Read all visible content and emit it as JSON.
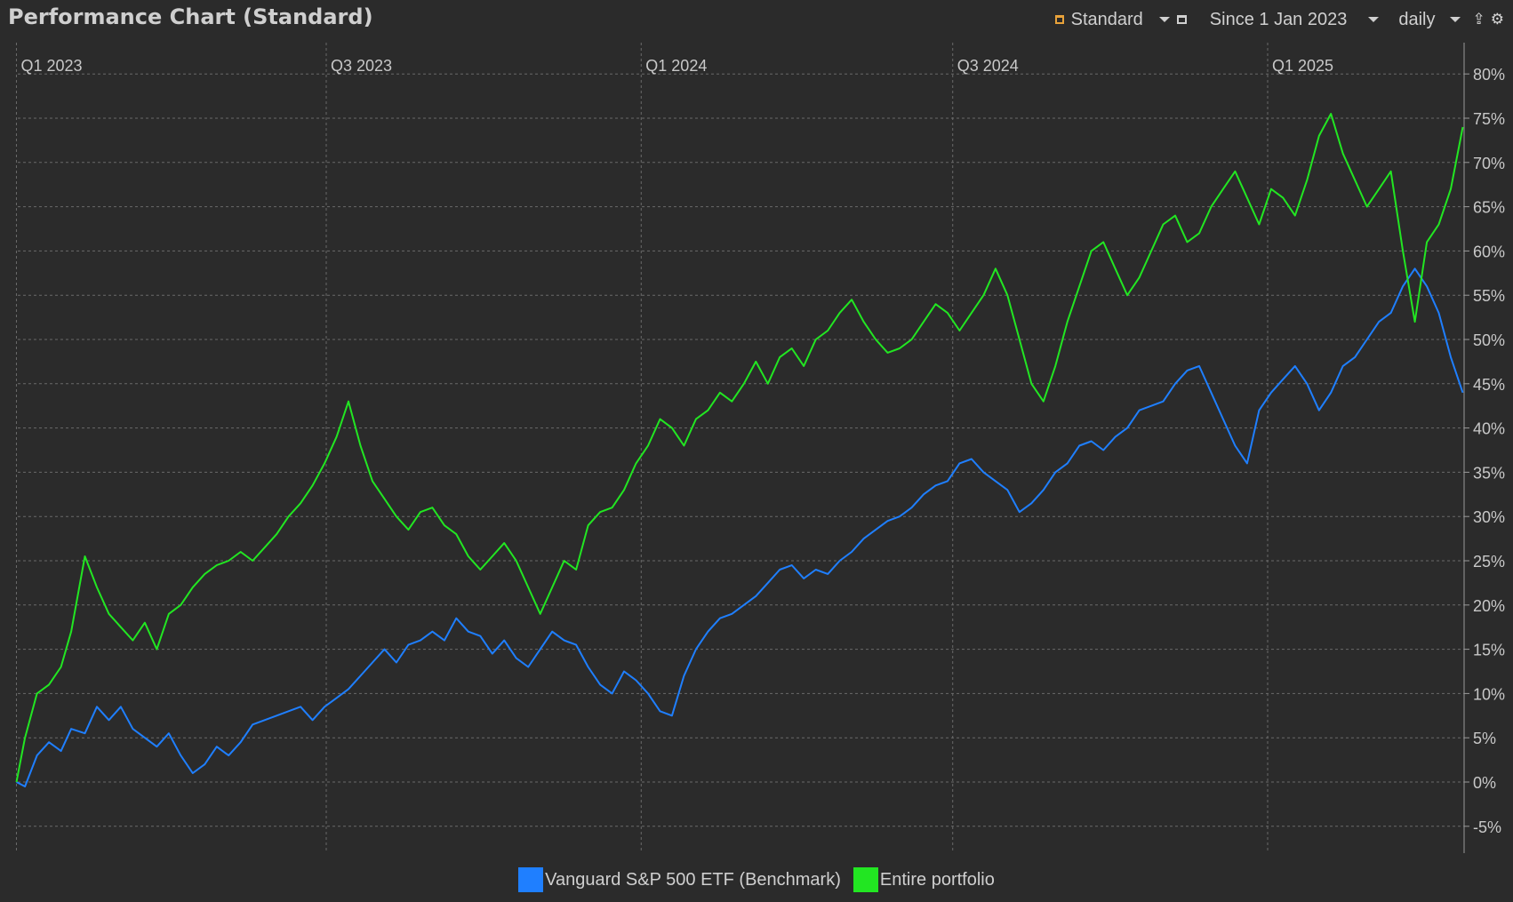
{
  "header": {
    "title": "Performance Chart (Standard)",
    "view_label": "Standard",
    "period_label": "Since 1 Jan 2023",
    "interval_label": "daily"
  },
  "icons": {
    "view": "chart-view-icon",
    "calendar": "calendar-icon",
    "export": "export-icon",
    "settings": "gear-icon"
  },
  "colors": {
    "background": "#2b2b2b",
    "benchmark": "#1f7fff",
    "portfolio": "#22e622",
    "grid": "#6a6a6a"
  },
  "chart_data": {
    "type": "line",
    "title": "Performance Chart (Standard)",
    "x_unit": "date",
    "x_range": [
      "2023-01-01",
      "2025-04-30"
    ],
    "y_unit": "%",
    "ylim": [
      -5,
      80
    ],
    "y_ticks": [
      80,
      75,
      70,
      65,
      60,
      55,
      50,
      45,
      40,
      35,
      30,
      25,
      20,
      15,
      10,
      5,
      0,
      -5
    ],
    "y_tick_labels": [
      "80%",
      "75%",
      "70%",
      "65%",
      "60%",
      "55%",
      "50%",
      "45%",
      "40%",
      "35%",
      "30%",
      "25%",
      "20%",
      "15%",
      "10%",
      "5%",
      "0%",
      "-5%"
    ],
    "x_ticks": [
      {
        "date": "2023-01-01",
        "label": "Q1 2023"
      },
      {
        "date": "2023-07-01",
        "label": "Q3 2023"
      },
      {
        "date": "2024-01-01",
        "label": "Q1 2024"
      },
      {
        "date": "2024-07-01",
        "label": "Q3 2024"
      },
      {
        "date": "2025-01-01",
        "label": "Q1 2025"
      }
    ],
    "grid": true,
    "legend_position": "bottom-center",
    "series": [
      {
        "name": "Vanguard S&P 500 ETF (Benchmark)",
        "color": "#1f7fff",
        "points": [
          [
            "2023-01-01",
            0
          ],
          [
            "2023-01-06",
            -0.5
          ],
          [
            "2023-01-13",
            3
          ],
          [
            "2023-01-20",
            4.5
          ],
          [
            "2023-01-27",
            3.5
          ],
          [
            "2023-02-02",
            6
          ],
          [
            "2023-02-10",
            5.5
          ],
          [
            "2023-02-17",
            8.5
          ],
          [
            "2023-02-24",
            7
          ],
          [
            "2023-03-03",
            8.5
          ],
          [
            "2023-03-10",
            6
          ],
          [
            "2023-03-17",
            5
          ],
          [
            "2023-03-24",
            4
          ],
          [
            "2023-03-31",
            5.5
          ],
          [
            "2023-04-07",
            3
          ],
          [
            "2023-04-14",
            1
          ],
          [
            "2023-04-21",
            2
          ],
          [
            "2023-04-28",
            4
          ],
          [
            "2023-05-05",
            3
          ],
          [
            "2023-05-12",
            4.5
          ],
          [
            "2023-05-19",
            6.5
          ],
          [
            "2023-05-26",
            7
          ],
          [
            "2023-06-02",
            7.5
          ],
          [
            "2023-06-09",
            8
          ],
          [
            "2023-06-16",
            8.5
          ],
          [
            "2023-06-23",
            7
          ],
          [
            "2023-06-30",
            8.5
          ],
          [
            "2023-07-07",
            9.5
          ],
          [
            "2023-07-14",
            10.5
          ],
          [
            "2023-07-21",
            12
          ],
          [
            "2023-07-28",
            13.5
          ],
          [
            "2023-08-04",
            15
          ],
          [
            "2023-08-11",
            13.5
          ],
          [
            "2023-08-18",
            15.5
          ],
          [
            "2023-08-25",
            16
          ],
          [
            "2023-09-01",
            17
          ],
          [
            "2023-09-08",
            16
          ],
          [
            "2023-09-15",
            18.5
          ],
          [
            "2023-09-22",
            17
          ],
          [
            "2023-09-29",
            16.5
          ],
          [
            "2023-10-06",
            14.5
          ],
          [
            "2023-10-13",
            16
          ],
          [
            "2023-10-20",
            14
          ],
          [
            "2023-10-27",
            13
          ],
          [
            "2023-11-03",
            15
          ],
          [
            "2023-11-10",
            17
          ],
          [
            "2023-11-17",
            16
          ],
          [
            "2023-11-24",
            15.5
          ],
          [
            "2023-12-01",
            13
          ],
          [
            "2023-12-08",
            11
          ],
          [
            "2023-12-15",
            10
          ],
          [
            "2023-12-22",
            12.5
          ],
          [
            "2023-12-29",
            11.5
          ],
          [
            "2024-01-05",
            10
          ],
          [
            "2024-01-12",
            8
          ],
          [
            "2024-01-19",
            7.5
          ],
          [
            "2024-01-26",
            12
          ],
          [
            "2024-02-02",
            15
          ],
          [
            "2024-02-09",
            17
          ],
          [
            "2024-02-16",
            18.5
          ],
          [
            "2024-02-23",
            19
          ],
          [
            "2024-03-01",
            20
          ],
          [
            "2024-03-08",
            21
          ],
          [
            "2024-03-15",
            22.5
          ],
          [
            "2024-03-22",
            24
          ],
          [
            "2024-03-29",
            24.5
          ],
          [
            "2024-04-05",
            23
          ],
          [
            "2024-04-12",
            24
          ],
          [
            "2024-04-19",
            23.5
          ],
          [
            "2024-04-26",
            25
          ],
          [
            "2024-05-03",
            26
          ],
          [
            "2024-05-10",
            27.5
          ],
          [
            "2024-05-17",
            28.5
          ],
          [
            "2024-05-24",
            29.5
          ],
          [
            "2024-05-31",
            30
          ],
          [
            "2024-06-07",
            31
          ],
          [
            "2024-06-14",
            32.5
          ],
          [
            "2024-06-21",
            33.5
          ],
          [
            "2024-06-28",
            34
          ],
          [
            "2024-07-05",
            36
          ],
          [
            "2024-07-12",
            36.5
          ],
          [
            "2024-07-19",
            35
          ],
          [
            "2024-07-26",
            34
          ],
          [
            "2024-08-02",
            33
          ],
          [
            "2024-08-09",
            30.5
          ],
          [
            "2024-08-16",
            31.5
          ],
          [
            "2024-08-23",
            33
          ],
          [
            "2024-08-30",
            35
          ],
          [
            "2024-09-06",
            36
          ],
          [
            "2024-09-13",
            38
          ],
          [
            "2024-09-20",
            38.5
          ],
          [
            "2024-09-27",
            37.5
          ],
          [
            "2024-10-04",
            39
          ],
          [
            "2024-10-11",
            40
          ],
          [
            "2024-10-18",
            42
          ],
          [
            "2024-10-25",
            42.5
          ],
          [
            "2024-11-01",
            43
          ],
          [
            "2024-11-08",
            45
          ],
          [
            "2024-11-15",
            46.5
          ],
          [
            "2024-11-22",
            47
          ],
          [
            "2024-11-29",
            44
          ],
          [
            "2024-12-06",
            41
          ],
          [
            "2024-12-13",
            38
          ],
          [
            "2024-12-20",
            36
          ],
          [
            "2024-12-27",
            42
          ],
          [
            "2025-01-03",
            44
          ],
          [
            "2025-01-10",
            45.5
          ],
          [
            "2025-01-17",
            47
          ],
          [
            "2025-01-24",
            45
          ],
          [
            "2025-01-31",
            42
          ],
          [
            "2025-02-07",
            44
          ],
          [
            "2025-02-14",
            47
          ],
          [
            "2025-02-21",
            48
          ],
          [
            "2025-02-28",
            50
          ],
          [
            "2025-03-07",
            52
          ],
          [
            "2025-03-14",
            53
          ],
          [
            "2025-03-21",
            56
          ],
          [
            "2025-03-28",
            58
          ],
          [
            "2025-04-04",
            56
          ],
          [
            "2025-04-11",
            53
          ],
          [
            "2025-04-18",
            48
          ],
          [
            "2025-04-25",
            44
          ]
        ]
      },
      {
        "name": "Entire portfolio",
        "color": "#22e622",
        "points": [
          [
            "2023-01-01",
            0
          ],
          [
            "2023-01-06",
            5
          ],
          [
            "2023-01-13",
            10
          ],
          [
            "2023-01-20",
            11
          ],
          [
            "2023-01-27",
            13
          ],
          [
            "2023-02-02",
            17
          ],
          [
            "2023-02-10",
            25.5
          ],
          [
            "2023-02-17",
            22
          ],
          [
            "2023-02-24",
            19
          ],
          [
            "2023-03-03",
            17.5
          ],
          [
            "2023-03-10",
            16
          ],
          [
            "2023-03-17",
            18
          ],
          [
            "2023-03-24",
            15
          ],
          [
            "2023-03-31",
            19
          ],
          [
            "2023-04-07",
            20
          ],
          [
            "2023-04-14",
            22
          ],
          [
            "2023-04-21",
            23.5
          ],
          [
            "2023-04-28",
            24.5
          ],
          [
            "2023-05-05",
            25
          ],
          [
            "2023-05-12",
            26
          ],
          [
            "2023-05-19",
            25
          ],
          [
            "2023-05-26",
            26.5
          ],
          [
            "2023-06-02",
            28
          ],
          [
            "2023-06-09",
            30
          ],
          [
            "2023-06-16",
            31.5
          ],
          [
            "2023-06-23",
            33.5
          ],
          [
            "2023-06-30",
            36
          ],
          [
            "2023-07-07",
            39
          ],
          [
            "2023-07-14",
            43
          ],
          [
            "2023-07-21",
            38
          ],
          [
            "2023-07-28",
            34
          ],
          [
            "2023-08-04",
            32
          ],
          [
            "2023-08-11",
            30
          ],
          [
            "2023-08-18",
            28.5
          ],
          [
            "2023-08-25",
            30.5
          ],
          [
            "2023-09-01",
            31
          ],
          [
            "2023-09-08",
            29
          ],
          [
            "2023-09-15",
            28
          ],
          [
            "2023-09-22",
            25.5
          ],
          [
            "2023-09-29",
            24
          ],
          [
            "2023-10-06",
            25.5
          ],
          [
            "2023-10-13",
            27
          ],
          [
            "2023-10-20",
            25
          ],
          [
            "2023-10-27",
            22
          ],
          [
            "2023-11-03",
            19
          ],
          [
            "2023-11-10",
            22
          ],
          [
            "2023-11-17",
            25
          ],
          [
            "2023-11-24",
            24
          ],
          [
            "2023-12-01",
            29
          ],
          [
            "2023-12-08",
            30.5
          ],
          [
            "2023-12-15",
            31
          ],
          [
            "2023-12-22",
            33
          ],
          [
            "2023-12-29",
            36
          ],
          [
            "2024-01-05",
            38
          ],
          [
            "2024-01-12",
            41
          ],
          [
            "2024-01-19",
            40
          ],
          [
            "2024-01-26",
            38
          ],
          [
            "2024-02-02",
            41
          ],
          [
            "2024-02-09",
            42
          ],
          [
            "2024-02-16",
            44
          ],
          [
            "2024-02-23",
            43
          ],
          [
            "2024-03-01",
            45
          ],
          [
            "2024-03-08",
            47.5
          ],
          [
            "2024-03-15",
            45
          ],
          [
            "2024-03-22",
            48
          ],
          [
            "2024-03-29",
            49
          ],
          [
            "2024-04-05",
            47
          ],
          [
            "2024-04-12",
            50
          ],
          [
            "2024-04-19",
            51
          ],
          [
            "2024-04-26",
            53
          ],
          [
            "2024-05-03",
            54.5
          ],
          [
            "2024-05-10",
            52
          ],
          [
            "2024-05-17",
            50
          ],
          [
            "2024-05-24",
            48.5
          ],
          [
            "2024-05-31",
            49
          ],
          [
            "2024-06-07",
            50
          ],
          [
            "2024-06-14",
            52
          ],
          [
            "2024-06-21",
            54
          ],
          [
            "2024-06-28",
            53
          ],
          [
            "2024-07-05",
            51
          ],
          [
            "2024-07-12",
            53
          ],
          [
            "2024-07-19",
            55
          ],
          [
            "2024-07-26",
            58
          ],
          [
            "2024-08-02",
            55
          ],
          [
            "2024-08-09",
            50
          ],
          [
            "2024-08-16",
            45
          ],
          [
            "2024-08-23",
            43
          ],
          [
            "2024-08-30",
            47
          ],
          [
            "2024-09-06",
            52
          ],
          [
            "2024-09-13",
            56
          ],
          [
            "2024-09-20",
            60
          ],
          [
            "2024-09-27",
            61
          ],
          [
            "2024-10-04",
            58
          ],
          [
            "2024-10-11",
            55
          ],
          [
            "2024-10-18",
            57
          ],
          [
            "2024-10-25",
            60
          ],
          [
            "2024-11-01",
            63
          ],
          [
            "2024-11-08",
            64
          ],
          [
            "2024-11-15",
            61
          ],
          [
            "2024-11-22",
            62
          ],
          [
            "2024-11-29",
            65
          ],
          [
            "2024-12-06",
            67
          ],
          [
            "2024-12-13",
            69
          ],
          [
            "2024-12-20",
            66
          ],
          [
            "2024-12-27",
            63
          ],
          [
            "2025-01-03",
            67
          ],
          [
            "2025-01-10",
            66
          ],
          [
            "2025-01-17",
            64
          ],
          [
            "2025-01-24",
            68
          ],
          [
            "2025-01-31",
            73
          ],
          [
            "2025-02-07",
            75.5
          ],
          [
            "2025-02-14",
            71
          ],
          [
            "2025-02-21",
            68
          ],
          [
            "2025-02-28",
            65
          ],
          [
            "2025-03-07",
            67
          ],
          [
            "2025-03-14",
            69
          ],
          [
            "2025-03-21",
            60
          ],
          [
            "2025-03-28",
            52
          ],
          [
            "2025-04-04",
            61
          ],
          [
            "2025-04-11",
            63
          ],
          [
            "2025-04-18",
            67
          ],
          [
            "2025-04-25",
            74
          ]
        ]
      }
    ]
  }
}
